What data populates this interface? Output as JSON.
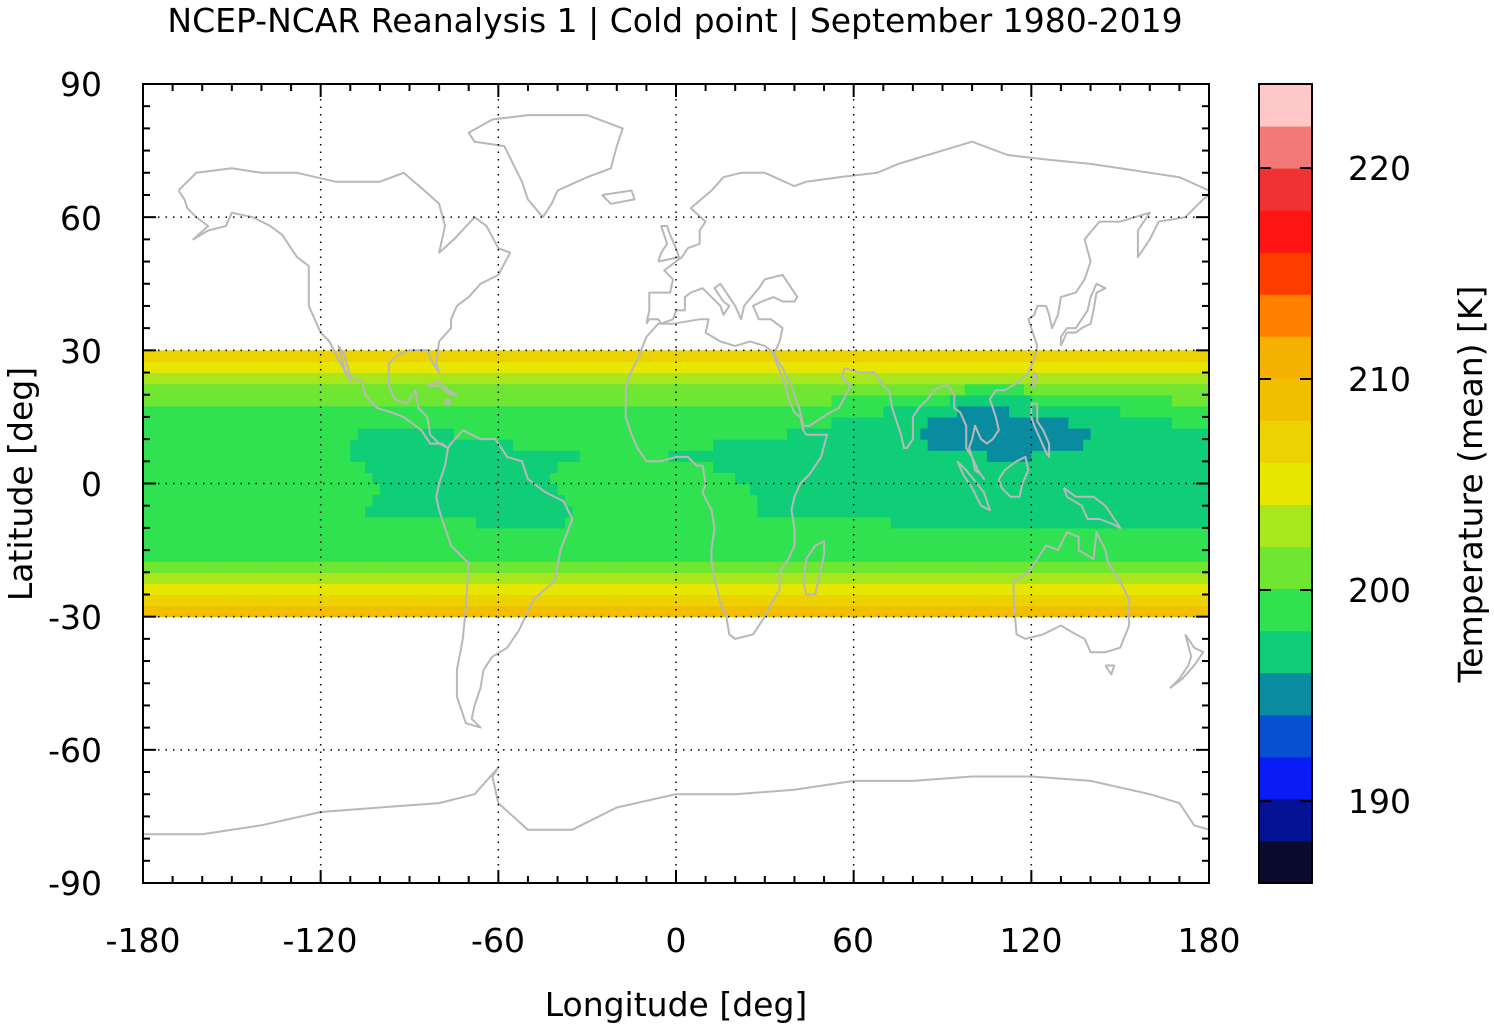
{
  "title": "NCEP-NCAR Reanalysis 1 | Cold point | September 1980-2019",
  "xlabel": "Longitude [deg]",
  "ylabel": "Latitude [deg]",
  "colorbar_label": "Temperature (mean) [K]",
  "x_ticks": [
    "-180",
    "-120",
    "-60",
    "0",
    "60",
    "120",
    "180"
  ],
  "y_ticks": [
    "90",
    "60",
    "30",
    "0",
    "-30",
    "-60",
    "-90"
  ],
  "colorbar_ticks": [
    "220",
    "210",
    "200",
    "190"
  ],
  "colors": {
    "coastline": "#b8b8b8",
    "palette_low_to_high": [
      "#0b0b2e",
      "#051296",
      "#0a1cf5",
      "#0850d2",
      "#0a8ca0",
      "#10cd78",
      "#30e250",
      "#6ee632",
      "#a8e61e",
      "#e6e600",
      "#ebd200",
      "#f0c000",
      "#f5b100",
      "#ff8000",
      "#ff3c00",
      "#ff1414",
      "#f03232",
      "#f57878",
      "#ffc8c8"
    ]
  },
  "chart_data": {
    "type": "heatmap",
    "title": "NCEP-NCAR Reanalysis 1 | Cold point | September 1980-2019",
    "xlabel": "Longitude [deg]",
    "ylabel": "Latitude [deg]",
    "xlim": [
      -180,
      180
    ],
    "ylim": [
      -90,
      90
    ],
    "x_ticks": [
      -180,
      -120,
      -60,
      0,
      60,
      120,
      180
    ],
    "y_ticks": [
      90,
      60,
      30,
      0,
      -30,
      -60,
      -90
    ],
    "grid": true,
    "data_latitude_range": [
      -30,
      30
    ],
    "colorbar": {
      "label": "Temperature (mean) [K]",
      "range": [
        185.5,
        223
      ],
      "ticks": [
        190,
        200,
        210,
        220
      ],
      "placement": "right"
    },
    "regions": [
      {
        "description": "warm subtropical edges near 30S and 30N",
        "approx_value": 208
      },
      {
        "description": "equatorial Pacific and Atlantic",
        "approx_value": 198
      },
      {
        "description": "Asian monsoon / West Pacific minimum",
        "lon_range": [
          50,
          170
        ],
        "lat_range": [
          0,
          25
        ],
        "approx_value": 195
      },
      {
        "description": "coldest point over Southeast Asia",
        "lon": 100,
        "lat": 15,
        "approx_value": 193.5
      }
    ]
  }
}
